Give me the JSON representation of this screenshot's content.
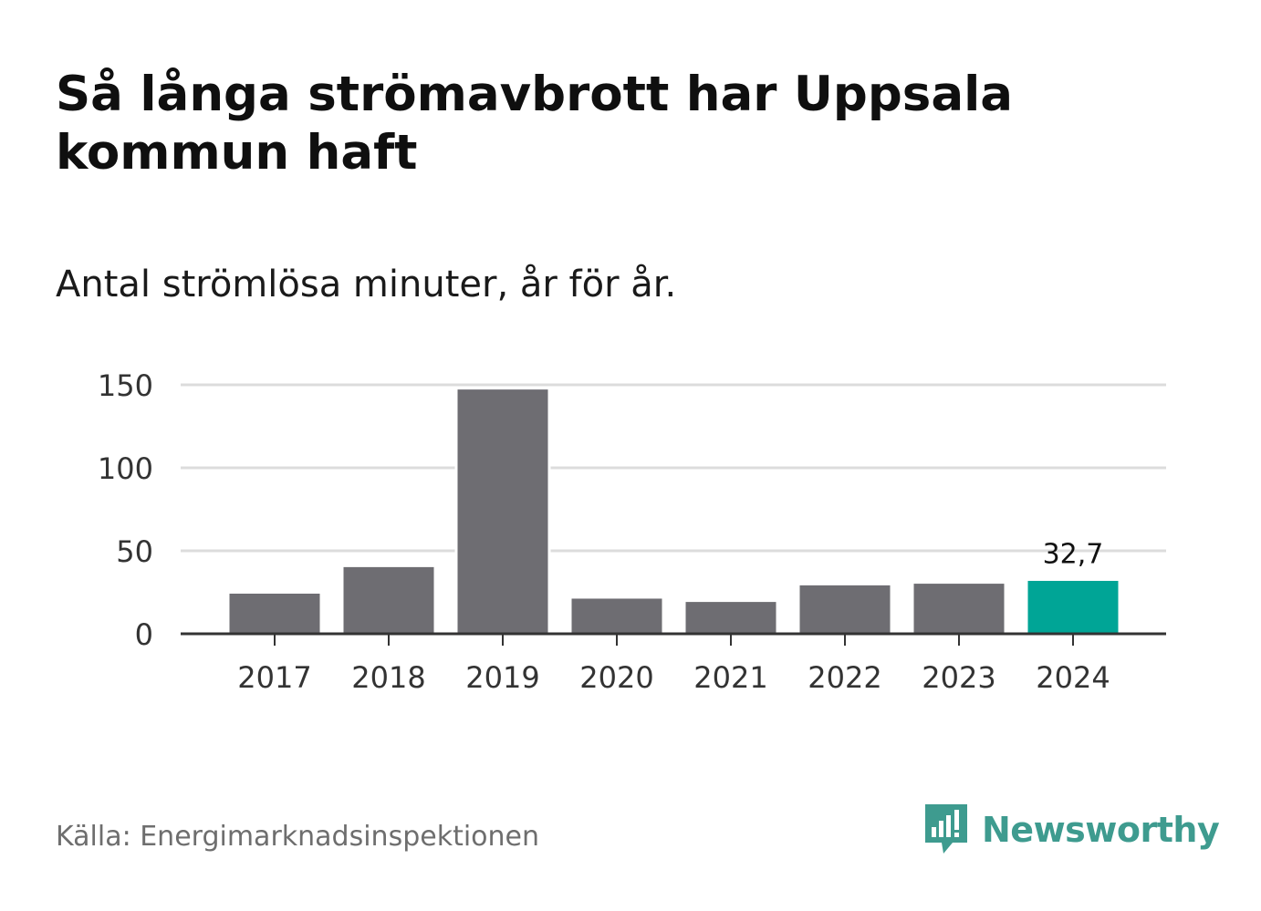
{
  "title": "Så långa strömavbrott har Uppsala kommun haft",
  "subtitle": "Antal strömlösa minuter, år för år.",
  "source": "Källa: Energimarknadsinspektionen",
  "brand": {
    "name": "Newsworthy",
    "icon": "newsworthy-logo-icon",
    "color": "#3e9b8f"
  },
  "colors": {
    "bar": "#6e6d72",
    "highlight": "#00a596",
    "grid": "#dcdcdc",
    "axis": "#333333"
  },
  "chart_data": {
    "type": "bar",
    "title": "Så långa strömavbrott har Uppsala kommun haft",
    "subtitle": "Antal strömlösa minuter, år för år.",
    "xlabel": "",
    "ylabel": "",
    "categories": [
      "2017",
      "2018",
      "2019",
      "2020",
      "2021",
      "2022",
      "2023",
      "2024"
    ],
    "values": [
      25,
      41,
      148,
      22,
      20,
      30,
      31,
      32.7
    ],
    "highlight_index": 7,
    "data_labels": [
      {
        "index": 7,
        "text": "32,7"
      }
    ],
    "ylim": [
      0,
      150
    ],
    "yticks": [
      0,
      50,
      100,
      150
    ],
    "ytick_labels": [
      "0",
      "50",
      "100",
      "150"
    ],
    "grid": true
  }
}
